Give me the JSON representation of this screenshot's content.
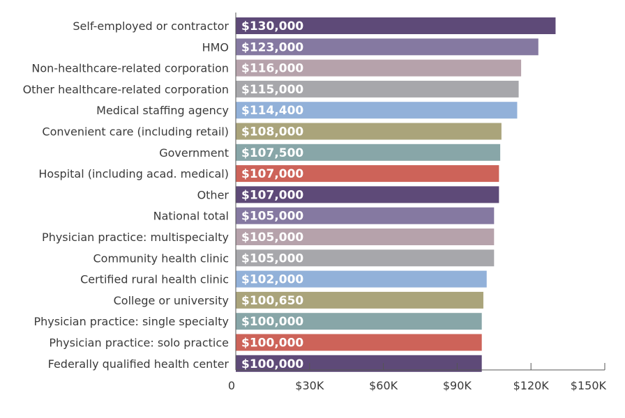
{
  "chart_data": {
    "type": "bar",
    "orientation": "horizontal",
    "title": "",
    "xlabel": "",
    "ylabel": "",
    "xlim": [
      0,
      150000
    ],
    "grid": false,
    "legend": "none",
    "ticks": [
      {
        "value": 0,
        "label": "0"
      },
      {
        "value": 30000,
        "label": "$30K"
      },
      {
        "value": 60000,
        "label": "$60K"
      },
      {
        "value": 90000,
        "label": "$90K"
      },
      {
        "value": 120000,
        "label": "$120K"
      },
      {
        "value": 150000,
        "label": "$150K"
      }
    ],
    "bars": [
      {
        "category": "Self-employed or contractor",
        "value": 130000,
        "label": "$130,000",
        "color": "#5e4a78"
      },
      {
        "category": "HMO",
        "value": 123000,
        "label": "$123,000",
        "color": "#8579a1"
      },
      {
        "category": "Non-healthcare-related corporation",
        "value": 116000,
        "label": "$116,000",
        "color": "#b6a2ab"
      },
      {
        "category": "Other healthcare-related corporation",
        "value": 115000,
        "label": "$115,000",
        "color": "#a7a7ab"
      },
      {
        "category": "Medical staffing agency",
        "value": 114400,
        "label": "$114,400",
        "color": "#92b1d9"
      },
      {
        "category": "Convenient care (including retail)",
        "value": 108000,
        "label": "$108,000",
        "color": "#aaa47b"
      },
      {
        "category": "Government",
        "value": 107500,
        "label": "$107,500",
        "color": "#88a6a8"
      },
      {
        "category": "Hospital (including acad. medical)",
        "value": 107000,
        "label": "$107,000",
        "color": "#cd6359"
      },
      {
        "category": "Other",
        "value": 107000,
        "label": "$107,000",
        "color": "#5e4a78"
      },
      {
        "category": "National total",
        "value": 105000,
        "label": "$105,000",
        "color": "#8579a1"
      },
      {
        "category": "Physician practice: multispecialty",
        "value": 105000,
        "label": "$105,000",
        "color": "#b6a2ab"
      },
      {
        "category": "Community health clinic",
        "value": 105000,
        "label": "$105,000",
        "color": "#a7a7ab"
      },
      {
        "category": "Certified rural health clinic",
        "value": 102000,
        "label": "$102,000",
        "color": "#92b1d9"
      },
      {
        "category": "College or university",
        "value": 100650,
        "label": "$100,650",
        "color": "#aaa47b"
      },
      {
        "category": "Physician practice: single specialty",
        "value": 100000,
        "label": "$100,000",
        "color": "#88a6a8"
      },
      {
        "category": "Physician practice: solo practice",
        "value": 100000,
        "label": "$100,000",
        "color": "#cd6359"
      },
      {
        "category": "Federally qualified health center",
        "value": 100000,
        "label": "$100,000",
        "color": "#5e4a78"
      }
    ]
  }
}
